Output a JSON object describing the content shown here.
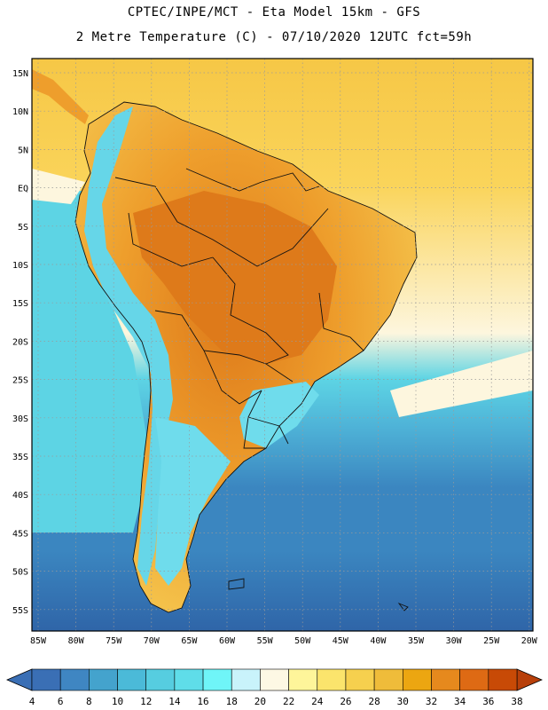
{
  "title_line1": "CPTEC/INPE/MCT -  Eta Model 15km - GFS",
  "title_line2": "2 Metre Temperature (C) - 07/10/2020 12UTC fct=59h",
  "lat_ticks": [
    "15N",
    "10N",
    "5N",
    "EQ",
    "5S",
    "10S",
    "15S",
    "20S",
    "25S",
    "30S",
    "35S",
    "40S",
    "45S",
    "50S",
    "55S"
  ],
  "lon_ticks": [
    "85W",
    "80W",
    "75W",
    "70W",
    "65W",
    "60W",
    "55W",
    "50W",
    "45W",
    "40W",
    "35W",
    "30W",
    "25W",
    "20W"
  ],
  "colorbar": {
    "labels": [
      "4",
      "6",
      "8",
      "10",
      "12",
      "14",
      "16",
      "18",
      "20",
      "22",
      "24",
      "26",
      "28",
      "30",
      "32",
      "34",
      "36",
      "38"
    ],
    "under_color": "#3a6fb5",
    "over_color": "#b8400a",
    "colors": [
      "#3a6fb5",
      "#3f86c2",
      "#44a3cd",
      "#4bbad8",
      "#56cde0",
      "#5fdde9",
      "#6ff5f8",
      "#c9f3fb",
      "#fdf8e4",
      "#fef59a",
      "#fbe46c",
      "#f6d04e",
      "#efbc3a",
      "#eca611",
      "#e6891d",
      "#de6a14",
      "#c84a06"
    ]
  },
  "map_colors": {
    "ocean_deep": "#2f65a8",
    "ocean_mid": "#3b86c0",
    "ocean_cold": "#4fb4d8",
    "ocean_cool": "#5dd4e4",
    "ocean_cream": "#fdf6de",
    "ocean_yellow": "#fad45a",
    "ocean_warm": "#f6c746",
    "land_hot": "#de7a1a",
    "land_warm": "#ee9e2c",
    "land_mild": "#f4c14a",
    "andes_cold": "#66d6e8",
    "patagonia": "#6fdcec",
    "border": "#111111",
    "grid": "#9a9a9a"
  }
}
